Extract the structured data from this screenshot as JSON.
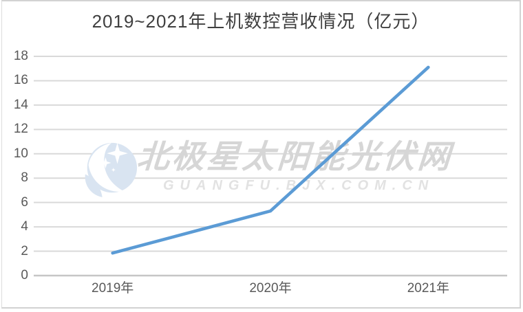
{
  "window": {
    "background": "#ffffff",
    "border_color": "#d2d2d2"
  },
  "chart_data": {
    "type": "line",
    "title": "2019~2021年上机数控营收情况（亿元）",
    "categories": [
      "2019年",
      "2020年",
      "2021年"
    ],
    "values": [
      1.85,
      5.3,
      17.1
    ],
    "xlabel": "",
    "ylabel": "",
    "ylim": [
      0,
      18
    ],
    "yticks": [
      0,
      2,
      4,
      6,
      8,
      10,
      12,
      14,
      16,
      18
    ],
    "grid": true,
    "legend_position": "none",
    "line_color": "#5B9BD5",
    "grid_color": "#d9d9d9",
    "axis_color": "#c6c6c6",
    "tick_label_color": "#595959",
    "title_color": "#3f3f3f"
  },
  "watermark": {
    "logo_icon": "bjx-star-moon-logo",
    "text": "北极星太阳能光伏网",
    "url": "GUANGFU.BJX.COM.CN",
    "logo_color": "#d9e4f1",
    "text_color": "#d6d6d6",
    "url_color": "#e2e2e2"
  }
}
